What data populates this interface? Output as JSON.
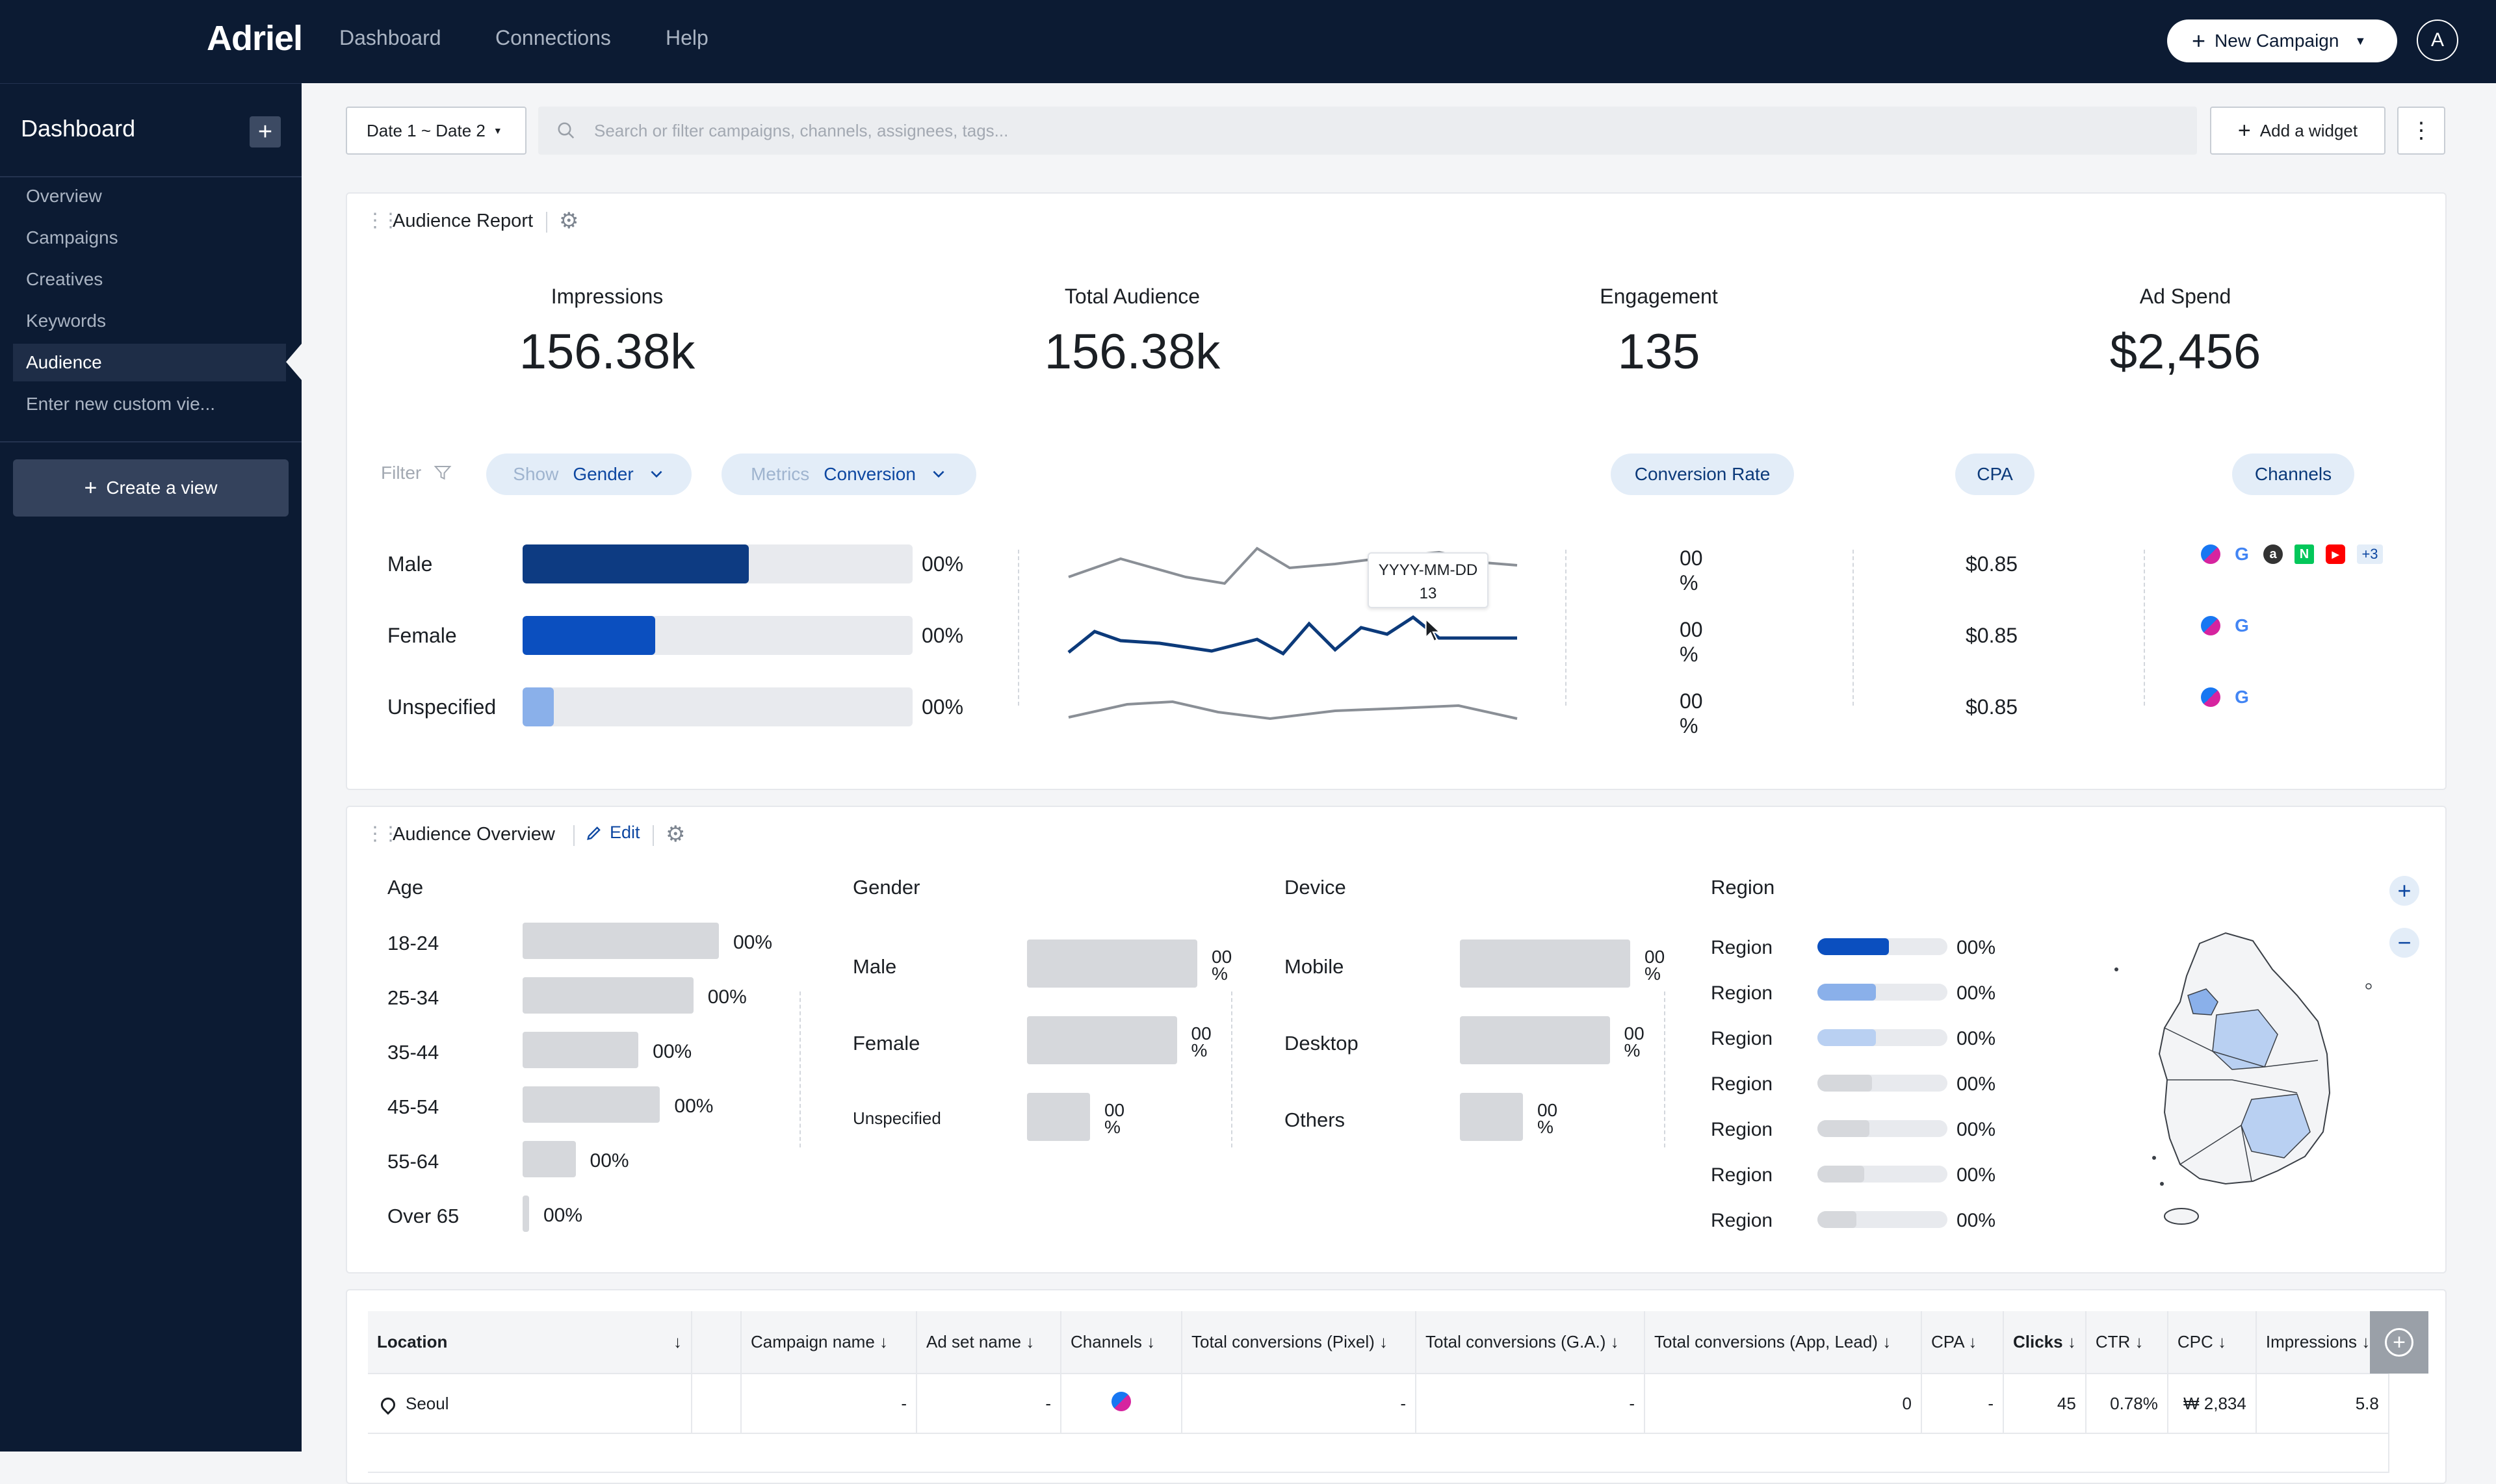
{
  "topbar": {
    "logo": "Adriel",
    "nav": [
      "Dashboard",
      "Connections",
      "Help"
    ],
    "new_campaign": "New Campaign",
    "avatar_initial": "A"
  },
  "sidebar": {
    "title": "Dashboard",
    "items": [
      "Overview",
      "Campaigns",
      "Creatives",
      "Keywords",
      "Audience",
      "Enter new custom vie..."
    ],
    "active_index": 4,
    "create_view": "Create a view"
  },
  "toolbar": {
    "date_range": "Date 1 ~ Date 2",
    "search_placeholder": "Search or filter campaigns, channels, assignees, tags...",
    "add_widget": "Add a widget"
  },
  "audience_report": {
    "title": "Audience Report",
    "kpis": [
      {
        "label": "Impressions",
        "value": "156.38k"
      },
      {
        "label": "Total Audience",
        "value": "156.38k"
      },
      {
        "label": "Engagement",
        "value": "135"
      },
      {
        "label": "Ad Spend",
        "value": "$2,456"
      }
    ],
    "filter_label": "Filter",
    "show_label": "Show",
    "show_value": "Gender",
    "metrics_label": "Metrics",
    "metrics_value": "Conversion",
    "col_headers": [
      "Conversion Rate",
      "CPA",
      "Channels"
    ],
    "rows": [
      {
        "label": "Male",
        "bar_fraction": 0.58,
        "bar_color": "#0d3b82",
        "pct": "00%",
        "rate": "00\n%",
        "cpa": "$0.85"
      },
      {
        "label": "Female",
        "bar_fraction": 0.34,
        "bar_color": "#0b4fbf",
        "pct": "00%",
        "rate": "00\n%",
        "cpa": "$0.85"
      },
      {
        "label": "Unspecified",
        "bar_fraction": 0.08,
        "bar_color": "#8ab0ea",
        "pct": "00%",
        "rate": "00\n%",
        "cpa": "$0.85"
      }
    ],
    "tooltip_date": "YYYY-MM-DD",
    "tooltip_value": "13",
    "extra_channels": "+3"
  },
  "audience_overview": {
    "title": "Audience Overview",
    "edit": "Edit",
    "age": {
      "title": "Age",
      "rows": [
        {
          "label": "18-24",
          "fraction": 1.0,
          "pct": "00%"
        },
        {
          "label": "25-34",
          "fraction": 0.87,
          "pct": "00%"
        },
        {
          "label": "35-44",
          "fraction": 0.59,
          "pct": "00%"
        },
        {
          "label": "45-54",
          "fraction": 0.7,
          "pct": "00%"
        },
        {
          "label": "55-64",
          "fraction": 0.27,
          "pct": "00%"
        },
        {
          "label": "Over 65",
          "fraction": 0.03,
          "pct": "00%"
        }
      ]
    },
    "gender": {
      "title": "Gender",
      "rows": [
        {
          "label": "Male",
          "fraction": 1.0,
          "pct": "00\n%"
        },
        {
          "label": "Female",
          "fraction": 0.88,
          "pct": "00\n%"
        },
        {
          "label": "Unspecified",
          "fraction": 0.37,
          "pct": "00\n%"
        }
      ]
    },
    "device": {
      "title": "Device",
      "rows": [
        {
          "label": "Mobile",
          "fraction": 1.0,
          "pct": "00\n%"
        },
        {
          "label": "Desktop",
          "fraction": 0.88,
          "pct": "00\n%"
        },
        {
          "label": "Others",
          "fraction": 0.37,
          "pct": "00\n%"
        }
      ]
    },
    "region": {
      "title": "Region",
      "rows": [
        {
          "label": "Region",
          "fraction": 0.55,
          "color": "#0b4fbf",
          "pct": "00%"
        },
        {
          "label": "Region",
          "fraction": 0.45,
          "color": "#8ab0ea",
          "pct": "00%"
        },
        {
          "label": "Region",
          "fraction": 0.45,
          "color": "#b9d0f2",
          "pct": "00%"
        },
        {
          "label": "Region",
          "fraction": 0.42,
          "color": "#d6d8dc",
          "pct": "00%"
        },
        {
          "label": "Region",
          "fraction": 0.4,
          "color": "#d6d8dc",
          "pct": "00%"
        },
        {
          "label": "Region",
          "fraction": 0.36,
          "color": "#d6d8dc",
          "pct": "00%"
        },
        {
          "label": "Region",
          "fraction": 0.3,
          "color": "#d6d8dc",
          "pct": "00%"
        }
      ]
    }
  },
  "table": {
    "headers": [
      "Location",
      "",
      "Campaign name",
      "Ad set name",
      "Channels",
      "Total conversions (Pixel)",
      "Total conversions (G.A.)",
      "Total conversions (App, Lead)",
      "CPA",
      "Clicks",
      "CTR",
      "CPC",
      "Impressions"
    ],
    "rows": [
      {
        "location": "Seoul",
        "campaign": "-",
        "adset": "-",
        "pixel": "-",
        "ga": "-",
        "app": "0",
        "cpa": "-",
        "clicks": "45",
        "ctr": "0.78%",
        "cpc": "₩ 2,834",
        "impressions": "5.8"
      }
    ]
  }
}
